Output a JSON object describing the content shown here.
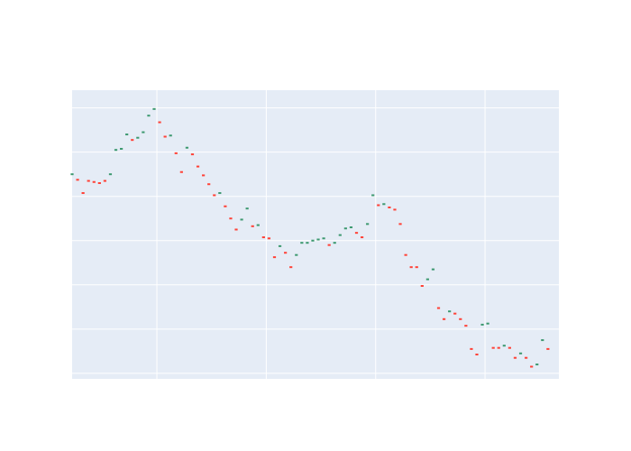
{
  "chart_data": {
    "type": "ohlc",
    "title": "",
    "xlabel": "",
    "ylabel": "",
    "x_range": [
      0,
      89
    ],
    "y_range": [
      -6.5,
      19.6
    ],
    "grid": true,
    "legend": "none",
    "increasing_color": "#3D9970",
    "decreasing_color": "#FF4136",
    "x_gridlines": [
      15.5,
      35.5,
      55.5,
      75.5
    ],
    "y_gridlines": [
      -6.0,
      -2.0,
      2.0,
      6.0,
      10.0,
      14.0,
      18.0
    ],
    "bars": [
      {
        "x": 0,
        "close": 12.0,
        "dir": "up"
      },
      {
        "x": 1,
        "close": 11.5,
        "dir": "down"
      },
      {
        "x": 2,
        "close": 10.3,
        "dir": "down"
      },
      {
        "x": 3,
        "close": 11.4,
        "dir": "down"
      },
      {
        "x": 4,
        "close": 11.3,
        "dir": "down"
      },
      {
        "x": 5,
        "close": 11.2,
        "dir": "down"
      },
      {
        "x": 6,
        "close": 11.4,
        "dir": "down"
      },
      {
        "x": 7,
        "close": 12.0,
        "dir": "up"
      },
      {
        "x": 8,
        "close": 14.2,
        "dir": "up"
      },
      {
        "x": 9,
        "close": 14.3,
        "dir": "up"
      },
      {
        "x": 10,
        "close": 15.6,
        "dir": "up"
      },
      {
        "x": 11,
        "close": 15.1,
        "dir": "down"
      },
      {
        "x": 12,
        "close": 15.3,
        "dir": "up"
      },
      {
        "x": 13,
        "close": 15.8,
        "dir": "up"
      },
      {
        "x": 14,
        "close": 17.3,
        "dir": "up"
      },
      {
        "x": 15,
        "close": 17.9,
        "dir": "up"
      },
      {
        "x": 16,
        "close": 16.7,
        "dir": "down"
      },
      {
        "x": 17,
        "close": 15.4,
        "dir": "down"
      },
      {
        "x": 18,
        "close": 15.5,
        "dir": "up"
      },
      {
        "x": 19,
        "close": 13.9,
        "dir": "down"
      },
      {
        "x": 20,
        "close": 12.2,
        "dir": "down"
      },
      {
        "x": 21,
        "close": 14.4,
        "dir": "up"
      },
      {
        "x": 22,
        "close": 13.8,
        "dir": "down"
      },
      {
        "x": 23,
        "close": 12.7,
        "dir": "down"
      },
      {
        "x": 24,
        "close": 11.9,
        "dir": "down"
      },
      {
        "x": 25,
        "close": 11.1,
        "dir": "down"
      },
      {
        "x": 26,
        "close": 10.1,
        "dir": "down"
      },
      {
        "x": 27,
        "close": 10.3,
        "dir": "up"
      },
      {
        "x": 28,
        "close": 9.1,
        "dir": "down"
      },
      {
        "x": 29,
        "close": 8.0,
        "dir": "down"
      },
      {
        "x": 30,
        "close": 7.0,
        "dir": "down"
      },
      {
        "x": 31,
        "close": 7.9,
        "dir": "up"
      },
      {
        "x": 32,
        "close": 8.9,
        "dir": "up"
      },
      {
        "x": 33,
        "close": 7.3,
        "dir": "down"
      },
      {
        "x": 34,
        "close": 7.4,
        "dir": "up"
      },
      {
        "x": 35,
        "close": 6.3,
        "dir": "down"
      },
      {
        "x": 36,
        "close": 6.2,
        "dir": "down"
      },
      {
        "x": 37,
        "close": 4.5,
        "dir": "down"
      },
      {
        "x": 38,
        "close": 5.5,
        "dir": "up"
      },
      {
        "x": 39,
        "close": 4.9,
        "dir": "down"
      },
      {
        "x": 40,
        "close": 3.6,
        "dir": "down"
      },
      {
        "x": 41,
        "close": 4.7,
        "dir": "up"
      },
      {
        "x": 42,
        "close": 5.8,
        "dir": "up"
      },
      {
        "x": 43,
        "close": 5.8,
        "dir": "up"
      },
      {
        "x": 44,
        "close": 6.0,
        "dir": "up"
      },
      {
        "x": 45,
        "close": 6.1,
        "dir": "up"
      },
      {
        "x": 46,
        "close": 6.2,
        "dir": "up"
      },
      {
        "x": 47,
        "close": 5.6,
        "dir": "down"
      },
      {
        "x": 48,
        "close": 5.8,
        "dir": "up"
      },
      {
        "x": 49,
        "close": 6.5,
        "dir": "up"
      },
      {
        "x": 50,
        "close": 7.1,
        "dir": "up"
      },
      {
        "x": 51,
        "close": 7.2,
        "dir": "up"
      },
      {
        "x": 52,
        "close": 6.7,
        "dir": "down"
      },
      {
        "x": 53,
        "close": 6.3,
        "dir": "down"
      },
      {
        "x": 54,
        "close": 7.5,
        "dir": "up"
      },
      {
        "x": 55,
        "close": 10.1,
        "dir": "up"
      },
      {
        "x": 56,
        "close": 9.2,
        "dir": "down"
      },
      {
        "x": 57,
        "close": 9.3,
        "dir": "up"
      },
      {
        "x": 58,
        "close": 9.0,
        "dir": "down"
      },
      {
        "x": 59,
        "close": 8.8,
        "dir": "down"
      },
      {
        "x": 60,
        "close": 7.5,
        "dir": "down"
      },
      {
        "x": 61,
        "close": 4.7,
        "dir": "down"
      },
      {
        "x": 62,
        "close": 3.6,
        "dir": "down"
      },
      {
        "x": 63,
        "close": 3.6,
        "dir": "down"
      },
      {
        "x": 64,
        "close": 1.9,
        "dir": "down"
      },
      {
        "x": 65,
        "close": 2.5,
        "dir": "up"
      },
      {
        "x": 66,
        "close": 3.4,
        "dir": "up"
      },
      {
        "x": 67,
        "close": -0.1,
        "dir": "down"
      },
      {
        "x": 68,
        "close": -1.1,
        "dir": "down"
      },
      {
        "x": 69,
        "close": -0.4,
        "dir": "up"
      },
      {
        "x": 70,
        "close": -0.6,
        "dir": "down"
      },
      {
        "x": 71,
        "close": -1.1,
        "dir": "down"
      },
      {
        "x": 72,
        "close": -1.7,
        "dir": "down"
      },
      {
        "x": 73,
        "close": -3.8,
        "dir": "down"
      },
      {
        "x": 74,
        "close": -4.3,
        "dir": "down"
      },
      {
        "x": 75,
        "close": -1.6,
        "dir": "up"
      },
      {
        "x": 76,
        "close": -1.5,
        "dir": "up"
      },
      {
        "x": 77,
        "close": -3.7,
        "dir": "down"
      },
      {
        "x": 78,
        "close": -3.7,
        "dir": "down"
      },
      {
        "x": 79,
        "close": -3.5,
        "dir": "up"
      },
      {
        "x": 80,
        "close": -3.7,
        "dir": "down"
      },
      {
        "x": 81,
        "close": -4.6,
        "dir": "down"
      },
      {
        "x": 82,
        "close": -4.2,
        "dir": "up"
      },
      {
        "x": 83,
        "close": -4.6,
        "dir": "down"
      },
      {
        "x": 84,
        "close": -5.4,
        "dir": "down"
      },
      {
        "x": 85,
        "close": -5.2,
        "dir": "up"
      },
      {
        "x": 86,
        "close": -3.0,
        "dir": "up"
      },
      {
        "x": 87,
        "close": -3.8,
        "dir": "down"
      }
    ]
  }
}
